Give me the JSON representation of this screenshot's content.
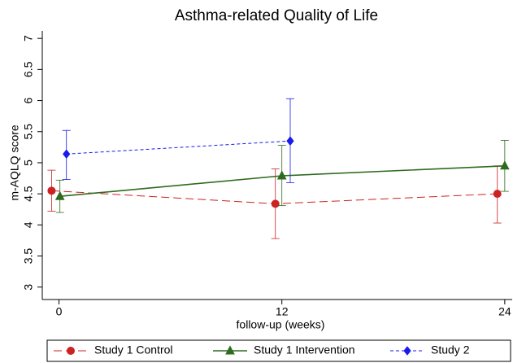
{
  "chart_data": {
    "type": "line",
    "title": "Asthma-related Quality of Life",
    "x_label": "follow-up (weeks)",
    "y_label": "m-AQLQ score",
    "xlim": [
      -0.9,
      24.4
    ],
    "xticks": [
      0,
      12,
      24
    ],
    "ylim": [
      2.8,
      7.12
    ],
    "yticks": [
      3,
      3.5,
      4,
      4.5,
      5,
      5.5,
      6,
      6.5,
      7
    ],
    "grid": false,
    "legend": "bottom",
    "series": [
      {
        "name": "Study 1 Control",
        "color": "#cc2222",
        "marker": "circle",
        "line_style": "longdash",
        "x": [
          -0.4,
          11.65,
          23.6
        ],
        "values": [
          4.55,
          4.34,
          4.5
        ],
        "lower": [
          4.22,
          3.78,
          4.03
        ],
        "upper": [
          4.88,
          4.9,
          4.95
        ]
      },
      {
        "name": "Study 1 Intervention",
        "color": "#2e6b1e",
        "marker": "triangle",
        "line_style": "solid",
        "x": [
          0.05,
          12,
          24
        ],
        "values": [
          4.46,
          4.79,
          4.95
        ],
        "lower": [
          4.2,
          4.31,
          4.54
        ],
        "upper": [
          4.72,
          5.28,
          5.36
        ]
      },
      {
        "name": "Study 2",
        "color": "#1a1aee",
        "marker": "diamond",
        "line_style": "shortdash",
        "x": [
          0.4,
          12.45
        ],
        "values": [
          5.14,
          5.35
        ],
        "lower": [
          4.73,
          4.68
        ],
        "upper": [
          5.52,
          6.03
        ]
      }
    ]
  }
}
